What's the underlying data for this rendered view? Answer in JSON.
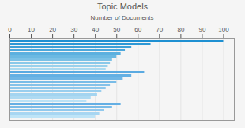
{
  "chart_data": {
    "type": "bar",
    "title": "Topic Models",
    "xlabel": "Number of Documents",
    "orientation": "horizontal",
    "categories": [
      null,
      null,
      null,
      null,
      null,
      null,
      null,
      null,
      null,
      null,
      null,
      null,
      null,
      null,
      null,
      null,
      null,
      null,
      null,
      null,
      null,
      null,
      null,
      null,
      null
    ],
    "values": [
      100,
      66,
      57,
      54,
      52,
      50,
      48,
      47,
      46,
      45,
      63,
      57,
      53,
      50,
      47,
      45,
      43,
      41,
      38,
      36,
      52,
      48,
      44,
      42,
      40
    ],
    "colors": [
      "#1e90d2",
      "#2d98d5",
      "#3da0d8",
      "#4ca8dc",
      "#5cb0df",
      "#6bb9e2",
      "#7bc1e6",
      "#8ac9e9",
      "#9ad1ec",
      "#aadaf0",
      "#5aaae1",
      "#64b0e3",
      "#6fb6e5",
      "#79bce7",
      "#84c2e9",
      "#8ec8ec",
      "#99ceee",
      "#a3d4f0",
      "#aedaf2",
      "#b9e1f5",
      "#64afe4",
      "#7abce8",
      "#91c9ed",
      "#a7d6f2",
      "#bee4f7"
    ],
    "xlim": [
      0,
      105
    ],
    "xticks": [
      0,
      10,
      20,
      30,
      40,
      50,
      60,
      70,
      80,
      90,
      100
    ],
    "grid": true,
    "tick_labels": "x"
  }
}
